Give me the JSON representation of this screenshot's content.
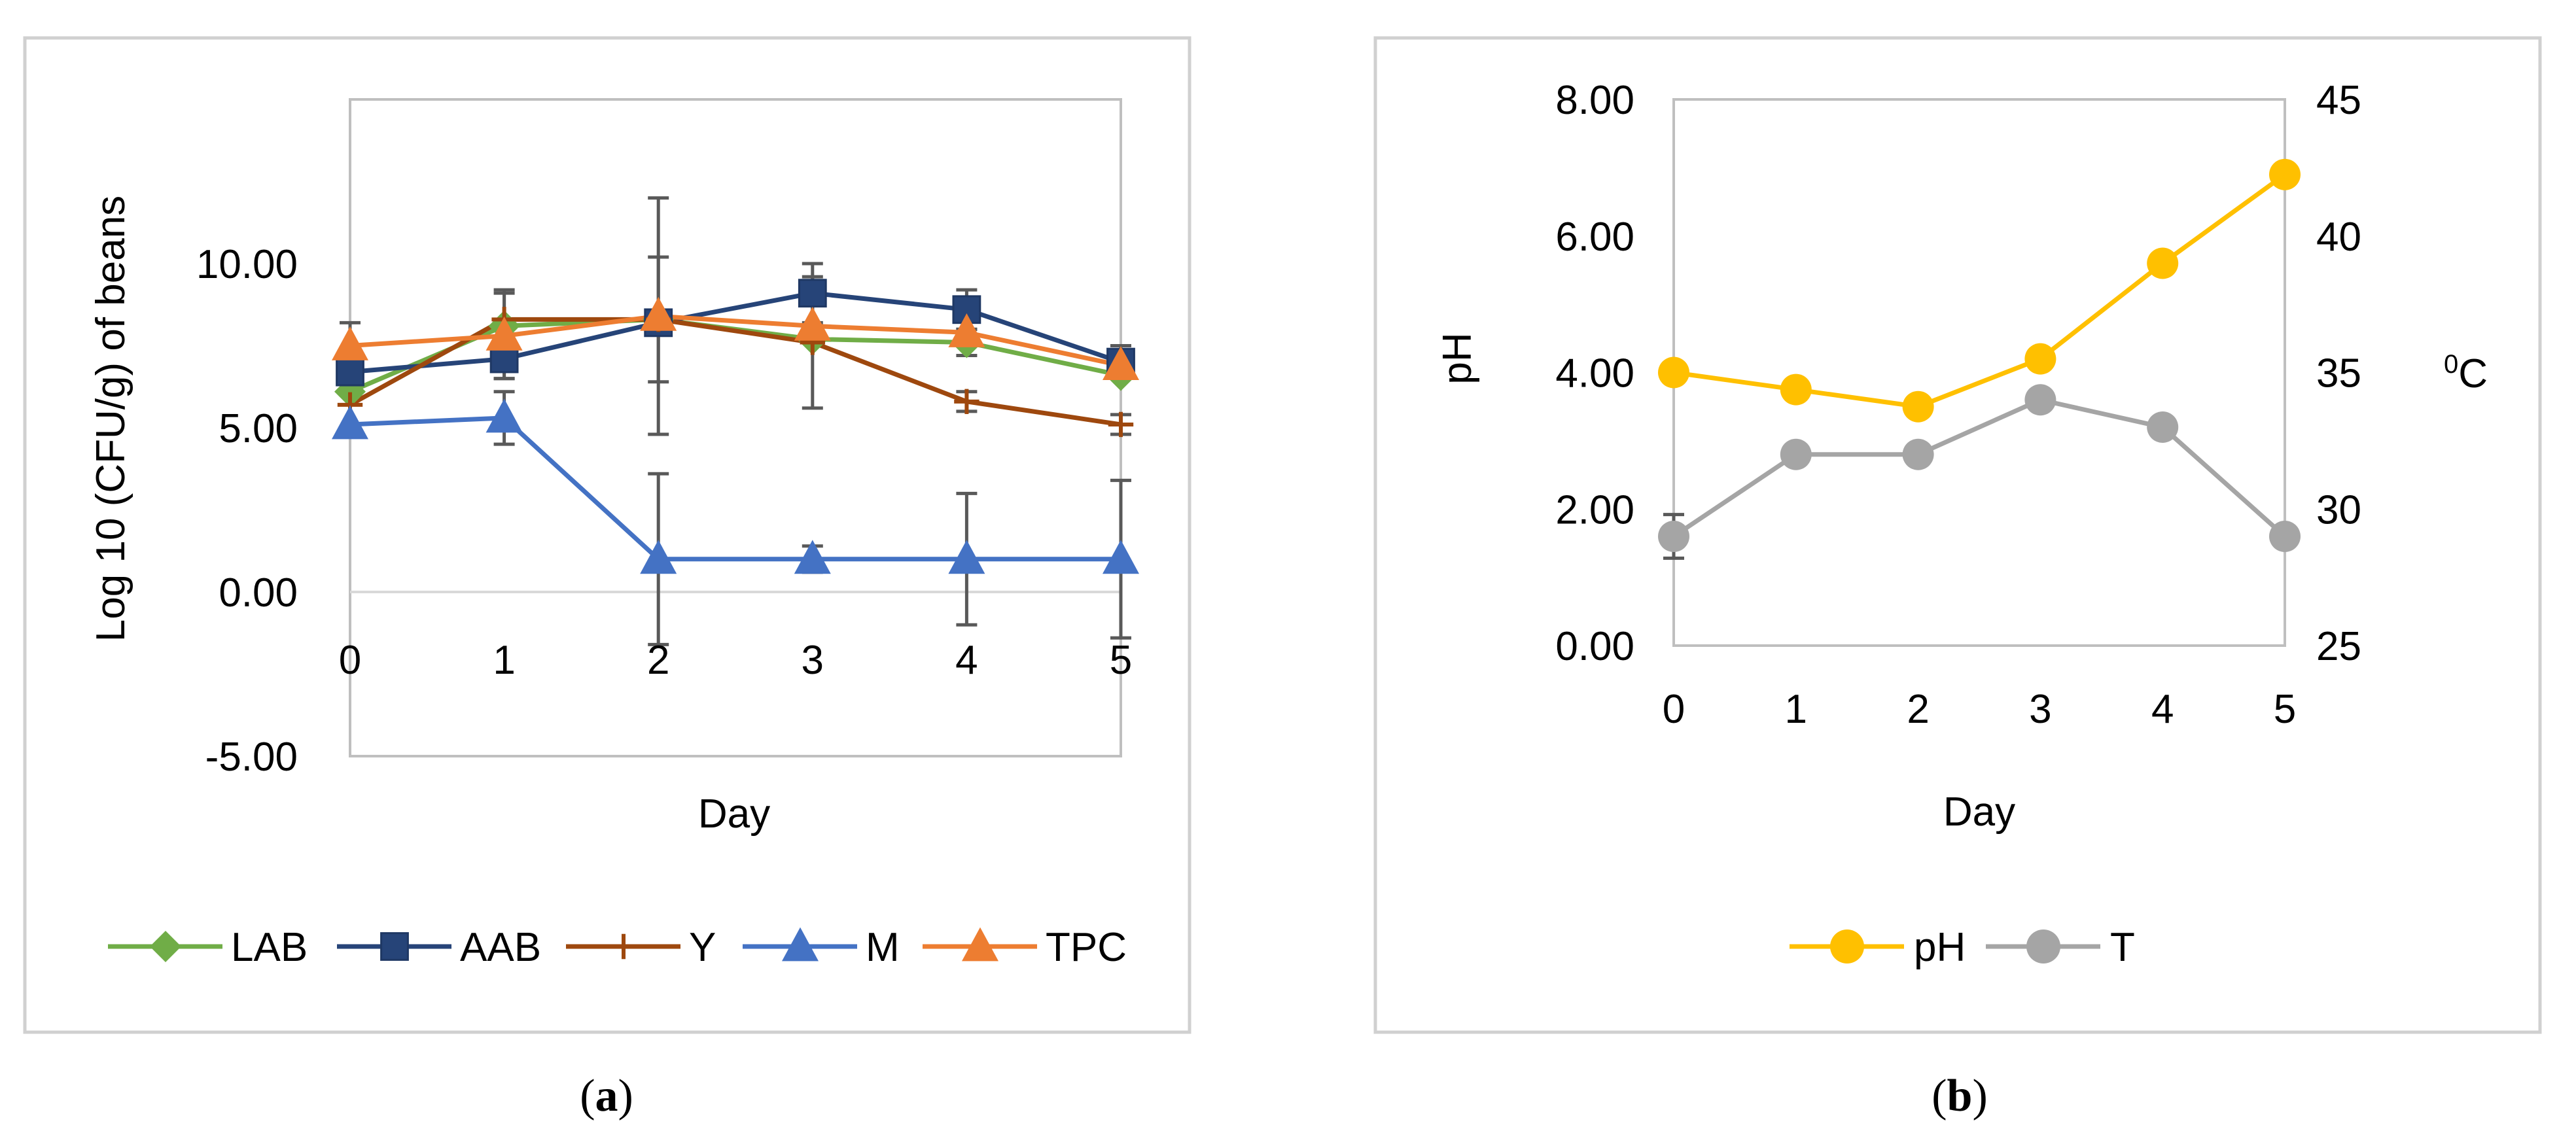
{
  "chart_data": [
    {
      "panel": "a",
      "type": "line",
      "caption_open": "(",
      "caption_letter": "a",
      "caption_close": ")",
      "xlabel": "Day",
      "ylabel": "Log 10 (CFU/g) of beans",
      "x": [
        0,
        1,
        2,
        3,
        4,
        5
      ],
      "xlim": [
        0,
        5
      ],
      "ylim": [
        -5,
        15
      ],
      "yticks": [
        -5,
        0,
        5,
        10
      ],
      "ytick_labels": [
        "-5.00",
        "0.00",
        "5.00",
        "10.00"
      ],
      "xtick_labels": [
        "0",
        "1",
        "2",
        "3",
        "4",
        "5"
      ],
      "legend_position": "bottom",
      "series": [
        {
          "name": "LAB",
          "color": "#70AD47",
          "marker": "diamond",
          "values": [
            6.1,
            8.1,
            8.3,
            7.7,
            7.6,
            6.6
          ],
          "err": [
            0,
            0,
            0,
            0,
            0.4,
            0
          ]
        },
        {
          "name": "AAB",
          "color": "#264478",
          "marker": "square",
          "values": [
            6.7,
            7.1,
            8.2,
            9.1,
            8.6,
            7.0
          ],
          "err": [
            0,
            0.6,
            0,
            0.9,
            0.6,
            0.5
          ]
        },
        {
          "name": "Y",
          "color": "#9E480E",
          "marker": "plus",
          "values": [
            5.7,
            8.3,
            8.3,
            7.6,
            5.8,
            5.1
          ],
          "err": [
            0,
            0.9,
            1.9,
            2.0,
            0.3,
            0.3
          ]
        },
        {
          "name": "M",
          "color": "#4472C4",
          "marker": "triangle",
          "values": [
            5.1,
            5.3,
            1.0,
            1.0,
            1.0,
            1.0
          ],
          "err": [
            0,
            0.8,
            2.6,
            0.4,
            2.0,
            2.4
          ]
        },
        {
          "name": "TPC",
          "color": "#ED7D31",
          "marker": "triangle",
          "values": [
            7.5,
            7.8,
            8.4,
            8.1,
            7.9,
            6.9
          ],
          "err": [
            0.7,
            1.3,
            3.6,
            0,
            0,
            0
          ]
        }
      ]
    },
    {
      "panel": "b",
      "type": "line",
      "caption_open": "(",
      "caption_letter": "b",
      "caption_close": ")",
      "xlabel": "Day",
      "ylabel": "pH",
      "y2label_super": "0",
      "y2label": "C",
      "x": [
        0,
        1,
        2,
        3,
        4,
        5
      ],
      "xlim": [
        0,
        5
      ],
      "ylim": [
        0,
        8
      ],
      "yticks": [
        0,
        2,
        4,
        6,
        8
      ],
      "ytick_labels": [
        "0.00",
        "2.00",
        "4.00",
        "6.00",
        "8.00"
      ],
      "y2lim": [
        25,
        45
      ],
      "y2ticks": [
        25,
        30,
        35,
        40,
        45
      ],
      "y2tick_labels": [
        "25",
        "30",
        "35",
        "40",
        "45"
      ],
      "xtick_labels": [
        "0",
        "1",
        "2",
        "3",
        "4",
        "5"
      ],
      "legend_position": "bottom",
      "series": [
        {
          "name": "pH",
          "axis": "left",
          "color": "#FFC000",
          "marker": "circle",
          "values": [
            4.0,
            3.75,
            3.5,
            4.2,
            5.6,
            6.9
          ],
          "err": [
            0,
            0,
            0,
            0,
            0,
            0
          ]
        },
        {
          "name": "T",
          "axis": "right",
          "color": "#A5A5A5",
          "marker": "circle",
          "values": [
            29,
            32,
            32,
            34,
            33,
            29
          ],
          "err": [
            0.8,
            0,
            0,
            0,
            0,
            0
          ]
        }
      ]
    }
  ]
}
